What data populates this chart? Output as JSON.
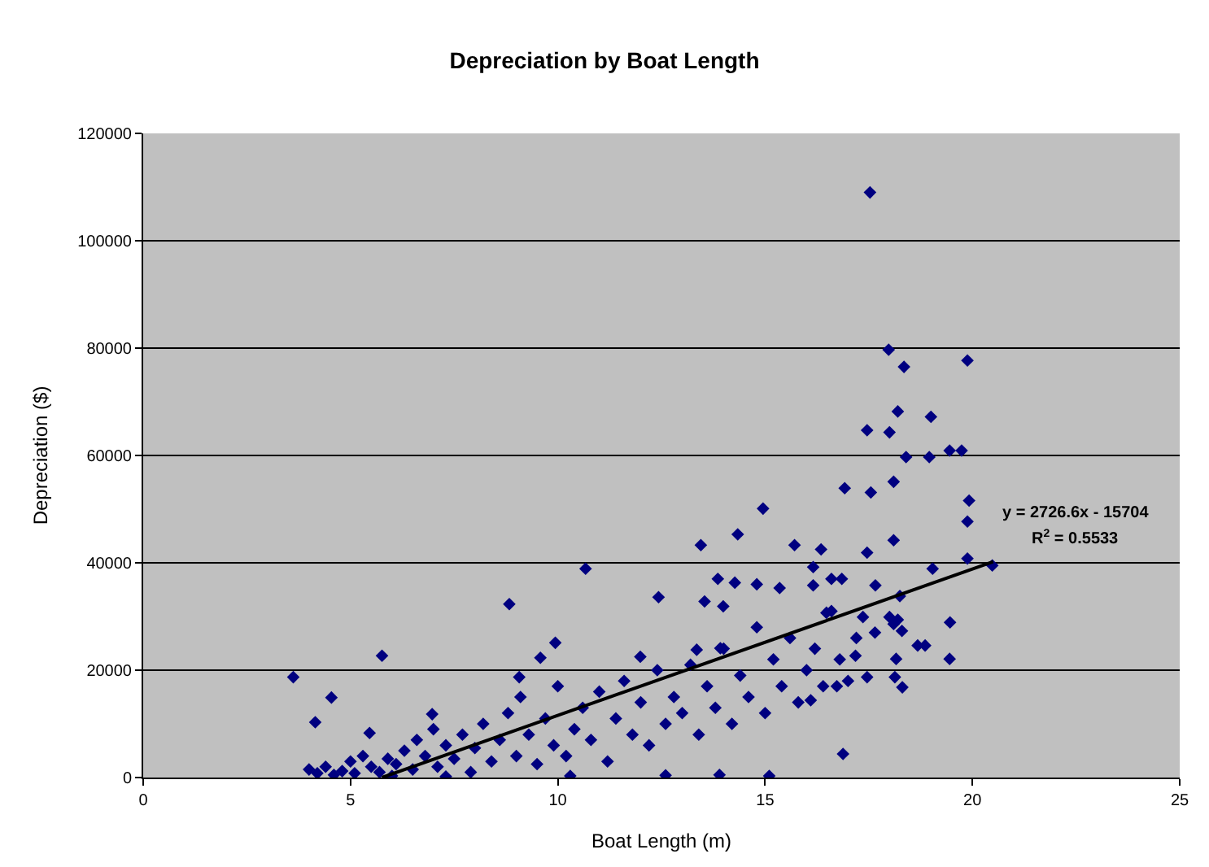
{
  "chart_data": {
    "type": "scatter",
    "title": "Depreciation by Boat Length",
    "xlabel": "Boat Length (m)",
    "ylabel": "Depreciation ($)",
    "xlim": [
      0,
      25
    ],
    "xticks": [
      0,
      5,
      10,
      15,
      20,
      25
    ],
    "ylim": [
      0,
      120000
    ],
    "yticks": [
      0,
      20000,
      40000,
      60000,
      80000,
      100000,
      120000
    ],
    "grid": "y",
    "annotations": [
      "y = 2726.6x - 15704",
      "R$^{2}$ = 0.5533"
    ],
    "series": [
      {
        "marker": "diamond",
        "color": "#000080",
        "x": [
          3.62,
          5.76,
          8.83,
          4.15,
          4.54,
          5.46,
          9.07,
          6.97,
          17.53,
          17.98,
          18.35,
          19.88,
          18.2,
          19.0,
          17.46,
          18.0,
          18.4,
          18.96,
          19.45,
          19.74,
          16.92,
          17.55,
          18.1,
          19.92,
          19.88,
          18.1,
          17.46,
          16.35,
          19.88,
          20.48,
          19.04,
          16.16,
          17.66,
          18.25,
          16.6,
          16.85,
          19.46,
          17.36,
          18.0,
          18.1,
          18.2,
          18.3,
          18.68,
          18.86,
          17.65,
          19.45,
          18.16,
          17.46,
          18.13,
          18.31,
          16.88,
          17.18,
          16.73,
          16.1,
          16.48,
          14.95,
          14.34,
          13.45,
          15.71,
          10.67,
          13.86,
          14.27,
          14.8,
          15.35,
          12.43,
          13.54,
          13.99,
          16.16,
          9.94,
          9.58,
          11.99,
          13.35,
          13.92,
          4.0,
          4.2,
          4.4,
          4.6,
          4.8,
          5.0,
          5.1,
          5.3,
          5.5,
          5.7,
          5.9,
          6.1,
          6.3,
          6.5,
          6.6,
          6.8,
          7.0,
          7.1,
          7.3,
          7.5,
          7.7,
          7.9,
          8.0,
          8.2,
          8.4,
          8.6,
          8.8,
          9.0,
          9.1,
          9.3,
          9.5,
          9.7,
          9.9,
          10.0,
          10.2,
          10.4,
          10.6,
          10.8,
          11.0,
          11.2,
          11.4,
          11.6,
          11.8,
          12.0,
          12.2,
          12.4,
          12.6,
          12.8,
          13.0,
          13.2,
          13.4,
          13.6,
          13.8,
          13.9,
          14.0,
          14.2,
          14.4,
          14.6,
          14.8,
          15.0,
          15.1,
          15.2,
          15.4,
          15.6,
          15.8,
          16.0,
          16.2,
          16.4,
          16.6,
          16.8,
          17.0,
          17.2,
          12.6,
          10.3,
          7.3,
          6.0
        ],
        "values": [
          18700,
          22700,
          32300,
          10300,
          14900,
          8300,
          18700,
          11800,
          109000,
          79700,
          76500,
          77700,
          68200,
          67200,
          64700,
          64300,
          59700,
          59700,
          60900,
          60900,
          53900,
          53100,
          55100,
          51600,
          47700,
          44200,
          41900,
          42500,
          40800,
          39500,
          38900,
          39200,
          35800,
          33800,
          37000,
          37000,
          28900,
          29900,
          29900,
          28600,
          29400,
          27300,
          24600,
          24600,
          27000,
          22100,
          22100,
          18700,
          18700,
          16800,
          4400,
          22700,
          17000,
          14400,
          30700,
          50100,
          45300,
          43300,
          43300,
          38900,
          37000,
          36300,
          36000,
          35300,
          33600,
          32800,
          31900,
          35800,
          25100,
          22300,
          22500,
          23800,
          24100,
          1500,
          800,
          2000,
          500,
          1200,
          3000,
          800,
          4000,
          2000,
          1000,
          3500,
          2500,
          5000,
          1500,
          7000,
          4000,
          9000,
          2000,
          6000,
          3500,
          8000,
          1000,
          5500,
          10000,
          3000,
          7000,
          12000,
          4000,
          15000,
          8000,
          2500,
          11000,
          6000,
          17000,
          4000,
          9000,
          13000,
          7000,
          16000,
          3000,
          11000,
          18000,
          8000,
          14000,
          6000,
          20000,
          10000,
          15000,
          12000,
          21000,
          8000,
          17000,
          13000,
          500,
          24000,
          10000,
          19000,
          15000,
          28000,
          12000,
          300,
          22000,
          17000,
          26000,
          14000,
          20000,
          24000,
          17000,
          31000,
          22000,
          18000,
          26000,
          400,
          300,
          200,
          300
        ]
      },
      {
        "type": "line",
        "color": "#000000",
        "x": [
          5.76,
          20.5
        ],
        "values": [
          0,
          40200
        ]
      }
    ]
  }
}
